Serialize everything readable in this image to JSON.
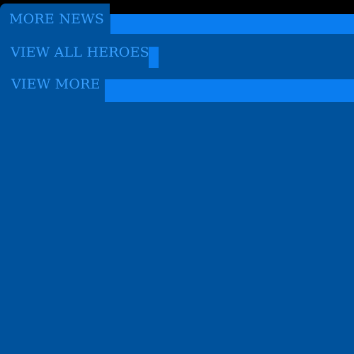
{
  "links": {
    "more_news": "MORE NEWS",
    "view_all_heroes": "VIEW ALL HEROES",
    "view_more": "VIEW MORE"
  },
  "colors": {
    "panel": "#00529c",
    "accent_bar": "#0a7df0",
    "link_text": "#3aa0ff",
    "background": "#000000"
  }
}
